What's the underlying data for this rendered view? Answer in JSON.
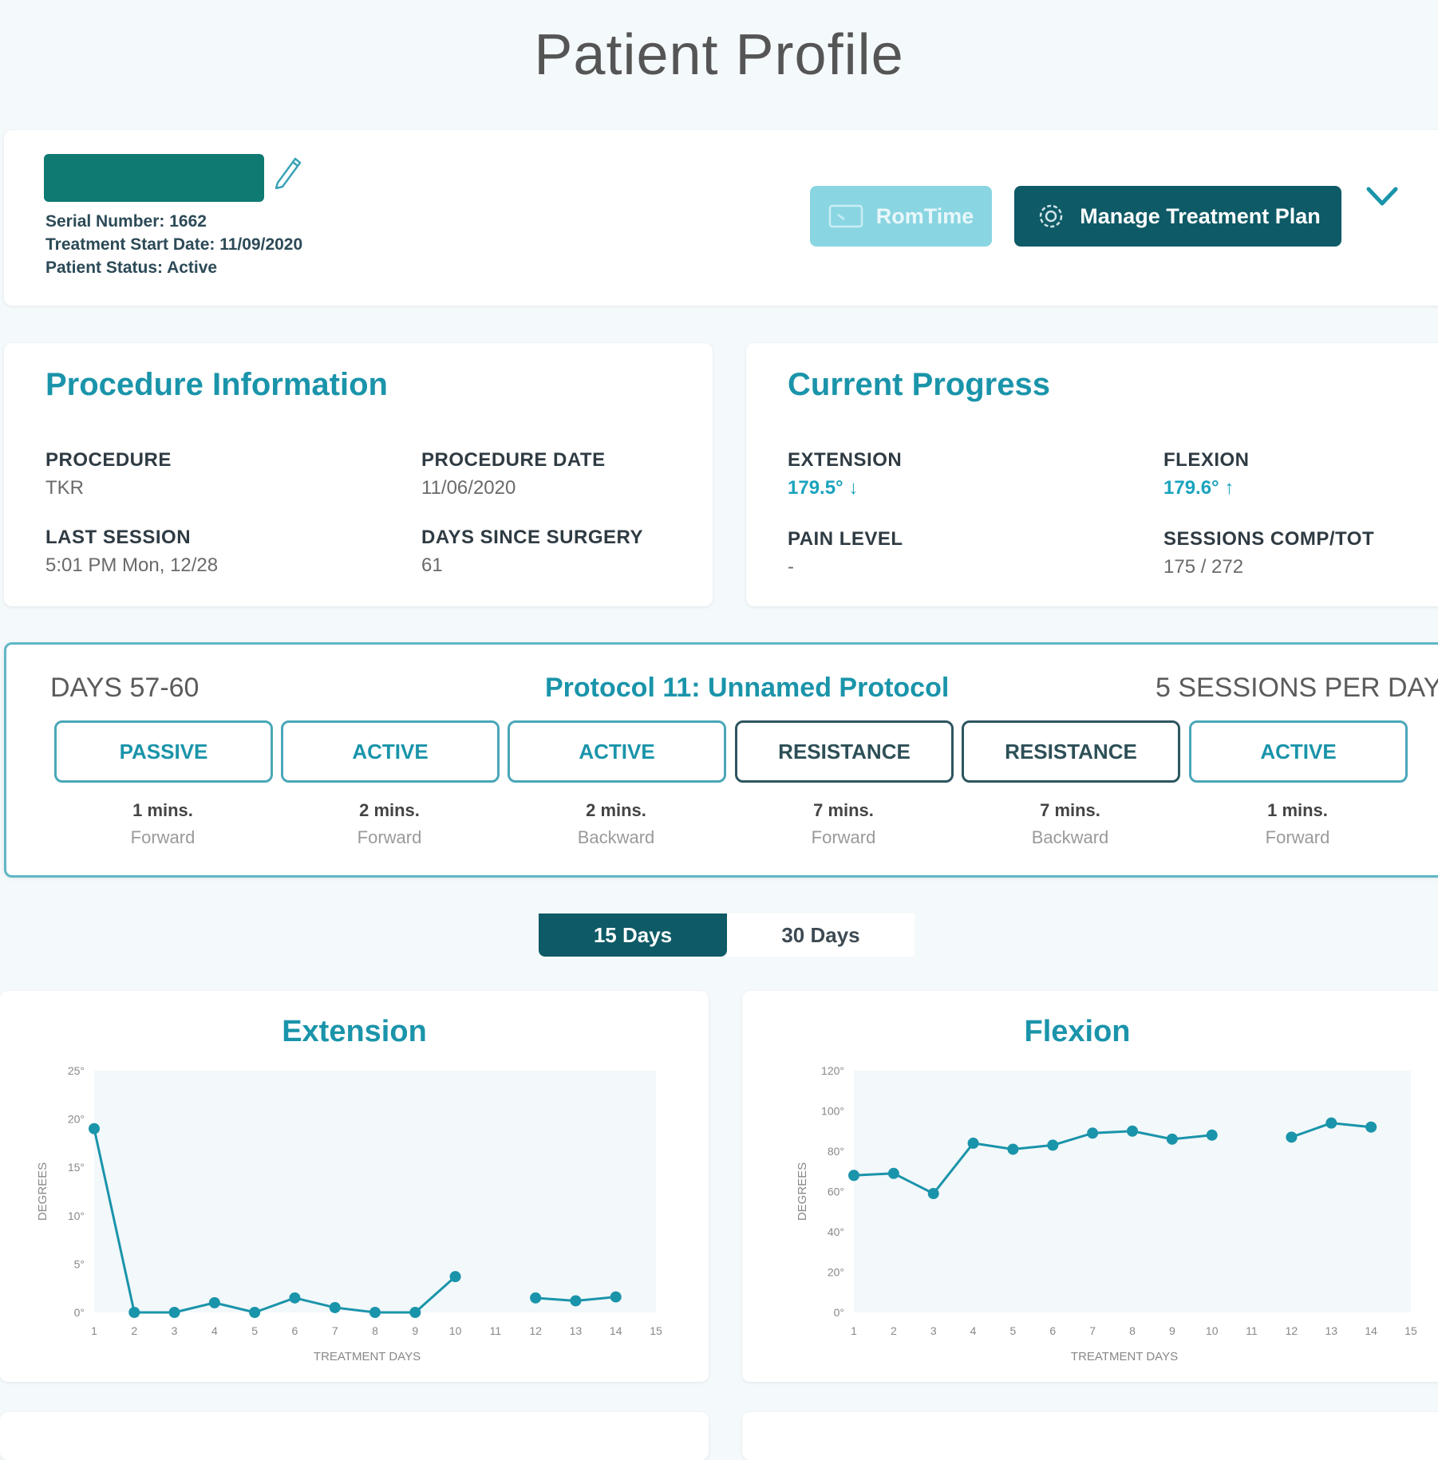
{
  "page": {
    "title": "Patient Profile"
  },
  "header": {
    "serial": "Serial Number: 1662",
    "start_date": "Treatment Start Date: 11/09/2020",
    "status": "Patient Status: Active",
    "romtime_label": "RomTime",
    "manage_label": "Manage Treatment Plan"
  },
  "procedure": {
    "title": "Procedure Information",
    "fields": [
      {
        "label": "PROCEDURE",
        "value": "TKR"
      },
      {
        "label": "PROCEDURE DATE",
        "value": "11/06/2020"
      },
      {
        "label": "LAST SESSION",
        "value": "5:01 PM Mon, 12/28"
      },
      {
        "label": "DAYS SINCE SURGERY",
        "value": "61"
      }
    ]
  },
  "progress": {
    "title": "Current Progress",
    "extension_label": "EXTENSION",
    "extension_value": "179.5°",
    "flexion_label": "FLEXION",
    "flexion_value": "179.6°",
    "pain_label": "PAIN LEVEL",
    "pain_value": "-",
    "sessions_label": "SESSIONS COMP/TOT",
    "sessions_value": "175 / 272"
  },
  "protocol": {
    "days": "DAYS 57-60",
    "name": "Protocol 11: Unnamed Protocol",
    "sessions": "5 SESSIONS PER DAY",
    "steps": [
      {
        "mode": "PASSIVE",
        "duration": "1 mins.",
        "direction": "Forward"
      },
      {
        "mode": "ACTIVE",
        "duration": "2 mins.",
        "direction": "Forward"
      },
      {
        "mode": "ACTIVE",
        "duration": "2 mins.",
        "direction": "Backward"
      },
      {
        "mode": "RESISTANCE",
        "duration": "7 mins.",
        "direction": "Forward"
      },
      {
        "mode": "RESISTANCE",
        "duration": "7 mins.",
        "direction": "Backward"
      },
      {
        "mode": "ACTIVE",
        "duration": "1 mins.",
        "direction": "Forward"
      }
    ]
  },
  "range_toggle": {
    "option_15": "15 Days",
    "option_30": "30 Days"
  },
  "chart_data": [
    {
      "type": "line",
      "title": "Extension",
      "xlabel": "TREATMENT DAYS",
      "ylabel": "DEGREES",
      "x": [
        1,
        2,
        3,
        4,
        5,
        6,
        7,
        8,
        9,
        10,
        11,
        12,
        13,
        14,
        15
      ],
      "yticks": [
        "0°",
        "5°",
        "10°",
        "15°",
        "20°",
        "25°"
      ],
      "ylim": [
        0,
        25
      ],
      "series": [
        {
          "name": "Extension",
          "values": [
            19,
            0,
            0,
            1,
            0,
            1.5,
            0.5,
            0,
            0,
            3.7,
            null,
            1.5,
            1.2,
            1.6,
            null
          ]
        }
      ]
    },
    {
      "type": "line",
      "title": "Flexion",
      "xlabel": "TREATMENT DAYS",
      "ylabel": "DEGREES",
      "x": [
        1,
        2,
        3,
        4,
        5,
        6,
        7,
        8,
        9,
        10,
        11,
        12,
        13,
        14,
        15
      ],
      "yticks": [
        "0°",
        "20°",
        "40°",
        "60°",
        "80°",
        "100°",
        "120°"
      ],
      "ylim": [
        0,
        120
      ],
      "series": [
        {
          "name": "Flexion",
          "values": [
            68,
            69,
            59,
            84,
            81,
            83,
            89,
            90,
            86,
            88,
            null,
            87,
            94,
            92,
            null
          ]
        }
      ]
    }
  ]
}
